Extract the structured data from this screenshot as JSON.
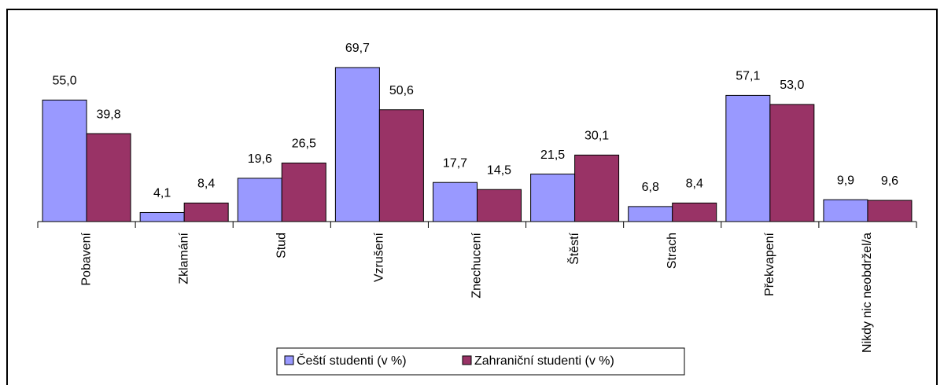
{
  "chart_data": {
    "type": "bar",
    "categories": [
      "Pobavení",
      "Zklamání",
      "Stud",
      "Vzrušení",
      "Znechucení",
      "Štěstí",
      "Strach",
      "Překvapení",
      "Nikdy nic neobdržel/a"
    ],
    "series": [
      {
        "name": "Čeští studenti (v %)",
        "color": "#9999ff",
        "values": [
          55.0,
          4.1,
          19.6,
          69.7,
          17.7,
          21.5,
          6.8,
          57.1,
          9.9
        ],
        "value_labels": [
          "55,0",
          "4,1",
          "19,6",
          "69,7",
          "17,7",
          "21,5",
          "6,8",
          "57,1",
          "9,9"
        ]
      },
      {
        "name": "Zahraniční studenti (v %)",
        "color": "#993366",
        "values": [
          39.8,
          8.4,
          26.5,
          50.6,
          14.5,
          30.1,
          8.4,
          53.0,
          9.6
        ],
        "value_labels": [
          "39,8",
          "8,4",
          "26,5",
          "50,6",
          "14,5",
          "30,1",
          "8,4",
          "53,0",
          "9,6"
        ]
      }
    ],
    "ylim": [
      0,
      80
    ]
  }
}
